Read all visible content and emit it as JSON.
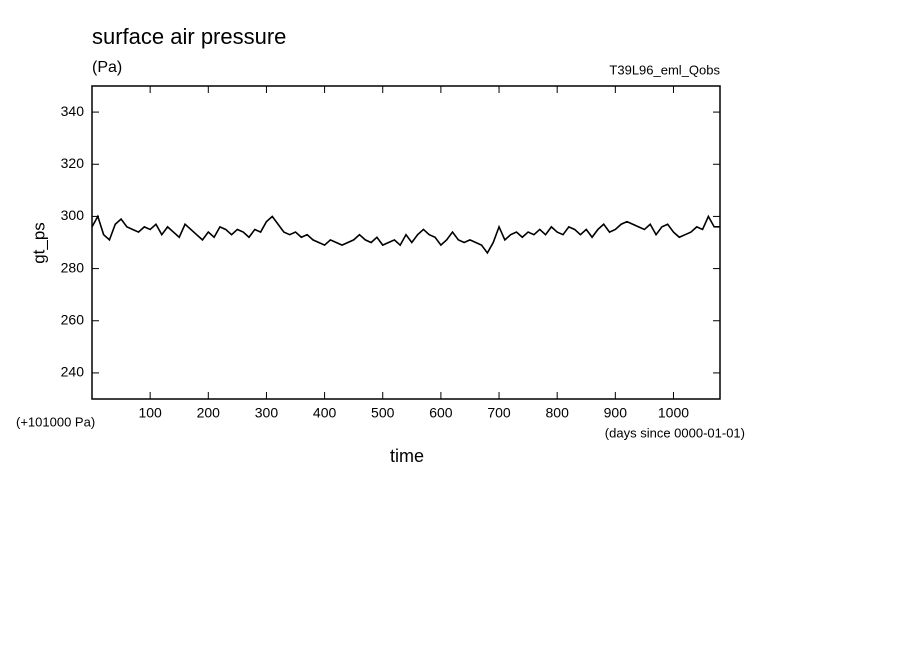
{
  "chart_data": {
    "type": "line",
    "title": "surface air pressure",
    "subtitle": "(Pa)",
    "annotation": "T39L96_eml_Qobs",
    "ylabel": "gt_ps",
    "xlabel": "time",
    "y_offset_note": "(+101000 Pa)",
    "x_unit_note": "(days since 0000-01-01)",
    "color": "#000000",
    "xlim": [
      0,
      1080
    ],
    "ylim": [
      230,
      350
    ],
    "xticks": [
      100,
      200,
      300,
      400,
      500,
      600,
      700,
      800,
      900,
      1000
    ],
    "yticks": [
      240,
      260,
      280,
      300,
      320,
      340
    ],
    "x": [
      0,
      10,
      20,
      30,
      40,
      50,
      60,
      70,
      80,
      90,
      100,
      110,
      120,
      130,
      140,
      150,
      160,
      170,
      180,
      190,
      200,
      210,
      220,
      230,
      240,
      250,
      260,
      270,
      280,
      290,
      300,
      310,
      320,
      330,
      340,
      350,
      360,
      370,
      380,
      390,
      400,
      410,
      420,
      430,
      440,
      450,
      460,
      470,
      480,
      490,
      500,
      510,
      520,
      530,
      540,
      550,
      560,
      570,
      580,
      590,
      600,
      610,
      620,
      630,
      640,
      650,
      660,
      670,
      680,
      690,
      700,
      710,
      720,
      730,
      740,
      750,
      760,
      770,
      780,
      790,
      800,
      810,
      820,
      830,
      840,
      850,
      860,
      870,
      880,
      890,
      900,
      910,
      920,
      930,
      940,
      950,
      960,
      970,
      980,
      990,
      1000,
      1010,
      1020,
      1030,
      1040,
      1050,
      1060,
      1070,
      1080
    ],
    "values": [
      296,
      300,
      293,
      291,
      297,
      299,
      296,
      295,
      294,
      296,
      295,
      297,
      293,
      296,
      294,
      292,
      297,
      295,
      293,
      291,
      294,
      292,
      296,
      295,
      293,
      295,
      294,
      292,
      295,
      294,
      298,
      300,
      297,
      294,
      293,
      294,
      292,
      293,
      291,
      290,
      289,
      291,
      290,
      289,
      290,
      291,
      293,
      291,
      290,
      292,
      289,
      290,
      291,
      289,
      293,
      290,
      293,
      295,
      293,
      292,
      289,
      291,
      294,
      291,
      290,
      291,
      290,
      289,
      286,
      290,
      296,
      291,
      293,
      294,
      292,
      294,
      293,
      295,
      293,
      296,
      294,
      293,
      296,
      295,
      293,
      295,
      292,
      295,
      297,
      294,
      295,
      297,
      298,
      297,
      296,
      295,
      297,
      293,
      296,
      297,
      294,
      292,
      293,
      294,
      296,
      295,
      300,
      296,
      296
    ]
  }
}
